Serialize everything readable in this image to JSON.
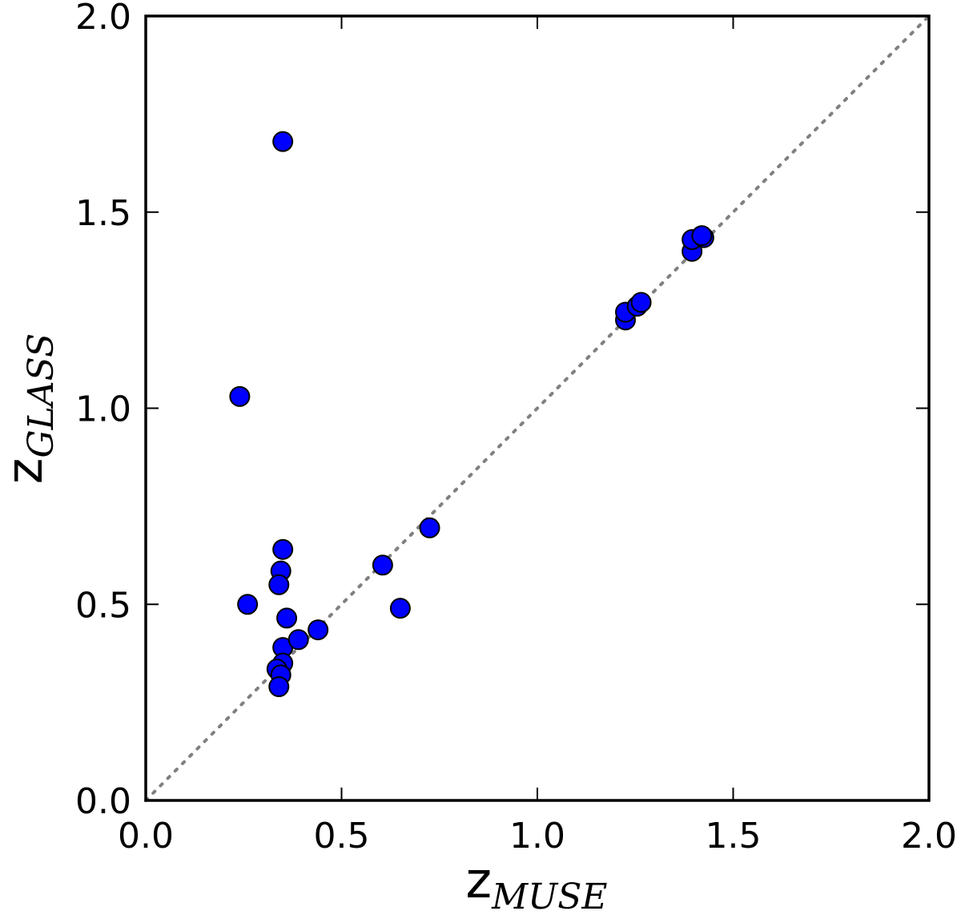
{
  "chart_data": {
    "type": "scatter",
    "xlabel": {
      "main": "z",
      "sub": "MUSE"
    },
    "ylabel": {
      "main": "z",
      "sub": "GLASS"
    },
    "xlim": [
      0.0,
      2.0
    ],
    "ylim": [
      0.0,
      2.0
    ],
    "xticks": [
      "0.0",
      "0.5",
      "1.0",
      "1.5",
      "2.0"
    ],
    "yticks": [
      "0.0",
      "0.5",
      "1.0",
      "1.5",
      "2.0"
    ],
    "grid": false,
    "reference_line": {
      "style": "dotted",
      "color": "#808080",
      "from": [
        0.0,
        0.0
      ],
      "to": [
        2.0,
        2.0
      ]
    },
    "marker_color": "#0000ff",
    "marker_edge": "#000000",
    "points": [
      {
        "x": 0.35,
        "y": 1.68
      },
      {
        "x": 0.24,
        "y": 1.03
      },
      {
        "x": 0.26,
        "y": 0.5
      },
      {
        "x": 0.35,
        "y": 0.64
      },
      {
        "x": 0.345,
        "y": 0.585
      },
      {
        "x": 0.34,
        "y": 0.55
      },
      {
        "x": 0.36,
        "y": 0.465
      },
      {
        "x": 0.35,
        "y": 0.39
      },
      {
        "x": 0.35,
        "y": 0.35
      },
      {
        "x": 0.335,
        "y": 0.335
      },
      {
        "x": 0.345,
        "y": 0.32
      },
      {
        "x": 0.34,
        "y": 0.29
      },
      {
        "x": 0.39,
        "y": 0.41
      },
      {
        "x": 0.44,
        "y": 0.435
      },
      {
        "x": 0.605,
        "y": 0.6
      },
      {
        "x": 0.65,
        "y": 0.49
      },
      {
        "x": 0.725,
        "y": 0.695
      },
      {
        "x": 1.225,
        "y": 1.225
      },
      {
        "x": 1.225,
        "y": 1.245
      },
      {
        "x": 1.255,
        "y": 1.26
      },
      {
        "x": 1.265,
        "y": 1.27
      },
      {
        "x": 1.395,
        "y": 1.4
      },
      {
        "x": 1.395,
        "y": 1.43
      },
      {
        "x": 1.425,
        "y": 1.435
      },
      {
        "x": 1.42,
        "y": 1.44
      }
    ]
  }
}
